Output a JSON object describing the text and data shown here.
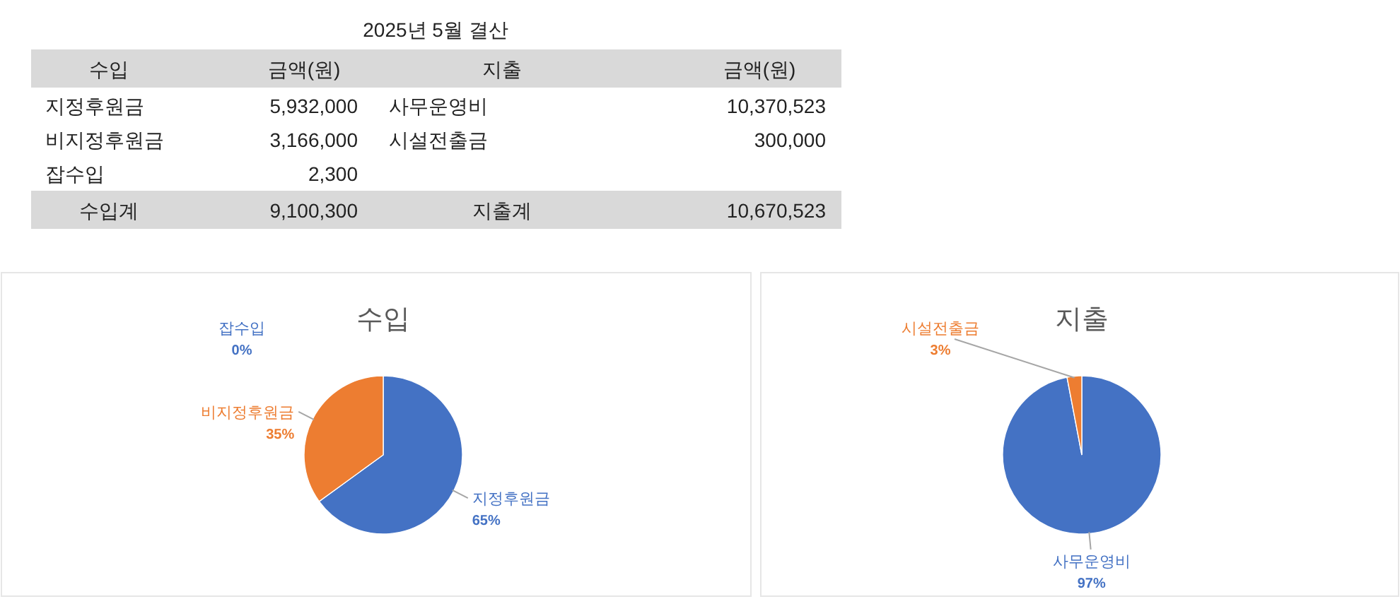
{
  "chart_data": [
    {
      "type": "other",
      "title": "2025년 5월 결산",
      "categories": [
        "수입",
        "금액(원)",
        "지출",
        "금액(원)"
      ],
      "cell_labels": [
        [
          "지정후원금",
          "5,932,000",
          "사무운영비",
          "10,370,523"
        ],
        [
          "비지정후원금",
          "3,166,000",
          "시설전출금",
          "300,000"
        ],
        [
          "잡수입",
          "2,300",
          null,
          null
        ],
        [
          "수입계",
          "9,100,300",
          "지출계",
          "10,670,523"
        ]
      ]
    },
    {
      "type": "pie",
      "title": "수입",
      "categories": [
        "지정후원금",
        "비지정후원금",
        "잡수입"
      ],
      "values": [
        65,
        35,
        0
      ],
      "colors": [
        "#4472c4",
        "#ed7d31",
        "#a5a5a5"
      ],
      "value_labels": [
        "65%",
        "35%",
        "0%"
      ]
    },
    {
      "type": "pie",
      "title": "지출",
      "categories": [
        "사무운영비",
        "시설전출금"
      ],
      "values": [
        97,
        3
      ],
      "colors": [
        "#4472c4",
        "#ed7d31"
      ],
      "value_labels": [
        "97%",
        "3%"
      ]
    }
  ]
}
